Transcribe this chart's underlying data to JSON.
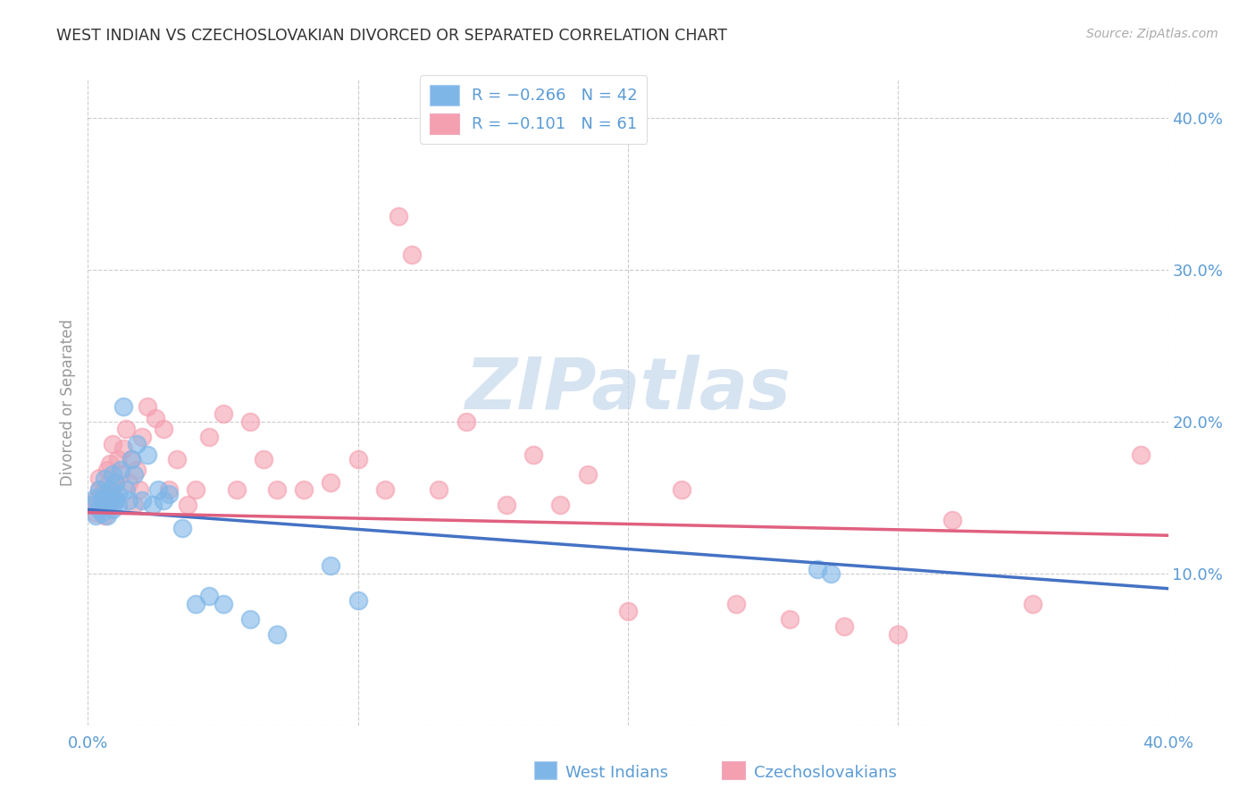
{
  "title": "WEST INDIAN VS CZECHOSLOVAKIAN DIVORCED OR SEPARATED CORRELATION CHART",
  "source": "Source: ZipAtlas.com",
  "ylabel": "Divorced or Separated",
  "xlim": [
    0.0,
    0.4
  ],
  "ylim": [
    0.0,
    0.425
  ],
  "x_ticks": [
    0.0,
    0.1,
    0.2,
    0.3,
    0.4
  ],
  "y_ticks_right": [
    0.0,
    0.1,
    0.2,
    0.3,
    0.4
  ],
  "watermark": "ZIPatlas",
  "color_blue": "#7EB6E8",
  "color_pink": "#F4A0B0",
  "trend_color_blue": "#4472C4",
  "trend_color_pink": "#E06080",
  "background_color": "#ffffff",
  "grid_color": "#cccccc",
  "title_color": "#333333",
  "axis_color": "#5b9bd5",
  "wi_trend_start": 0.142,
  "wi_trend_end": 0.09,
  "cz_trend_start": 0.14,
  "cz_trend_end": 0.125,
  "west_indians_x": [
    0.002,
    0.003,
    0.003,
    0.004,
    0.004,
    0.005,
    0.005,
    0.006,
    0.006,
    0.007,
    0.007,
    0.008,
    0.008,
    0.009,
    0.009,
    0.01,
    0.01,
    0.011,
    0.011,
    0.012,
    0.013,
    0.014,
    0.015,
    0.016,
    0.017,
    0.018,
    0.02,
    0.022,
    0.024,
    0.026,
    0.028,
    0.03,
    0.035,
    0.04,
    0.045,
    0.05,
    0.06,
    0.07,
    0.09,
    0.1,
    0.27,
    0.275
  ],
  "west_indians_y": [
    0.145,
    0.15,
    0.138,
    0.155,
    0.143,
    0.148,
    0.14,
    0.152,
    0.162,
    0.145,
    0.138,
    0.155,
    0.148,
    0.165,
    0.142,
    0.148,
    0.16,
    0.152,
    0.145,
    0.168,
    0.21,
    0.155,
    0.148,
    0.175,
    0.165,
    0.185,
    0.148,
    0.178,
    0.145,
    0.155,
    0.148,
    0.152,
    0.13,
    0.08,
    0.085,
    0.08,
    0.07,
    0.06,
    0.105,
    0.082,
    0.103,
    0.1
  ],
  "czechoslovakians_x": [
    0.002,
    0.003,
    0.003,
    0.004,
    0.004,
    0.005,
    0.005,
    0.006,
    0.007,
    0.007,
    0.008,
    0.008,
    0.009,
    0.009,
    0.01,
    0.01,
    0.011,
    0.012,
    0.013,
    0.014,
    0.015,
    0.016,
    0.017,
    0.018,
    0.019,
    0.02,
    0.022,
    0.025,
    0.028,
    0.03,
    0.033,
    0.037,
    0.04,
    0.045,
    0.05,
    0.055,
    0.06,
    0.065,
    0.07,
    0.08,
    0.09,
    0.1,
    0.11,
    0.115,
    0.12,
    0.13,
    0.14,
    0.155,
    0.165,
    0.175,
    0.185,
    0.2,
    0.22,
    0.24,
    0.26,
    0.28,
    0.3,
    0.32,
    0.35,
    0.39
  ],
  "czechoslovakians_y": [
    0.145,
    0.148,
    0.14,
    0.155,
    0.163,
    0.152,
    0.148,
    0.138,
    0.158,
    0.168,
    0.145,
    0.172,
    0.155,
    0.185,
    0.148,
    0.16,
    0.175,
    0.165,
    0.182,
    0.195,
    0.16,
    0.175,
    0.145,
    0.168,
    0.155,
    0.19,
    0.21,
    0.202,
    0.195,
    0.155,
    0.175,
    0.145,
    0.155,
    0.19,
    0.205,
    0.155,
    0.2,
    0.175,
    0.155,
    0.155,
    0.16,
    0.175,
    0.155,
    0.335,
    0.31,
    0.155,
    0.2,
    0.145,
    0.178,
    0.145,
    0.165,
    0.075,
    0.155,
    0.08,
    0.07,
    0.065,
    0.06,
    0.135,
    0.08,
    0.178
  ]
}
